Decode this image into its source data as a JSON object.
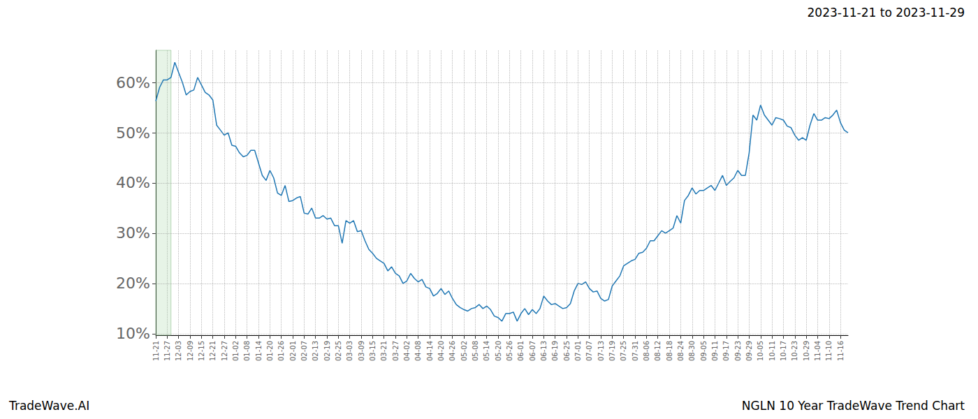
{
  "chart_data": {
    "type": "line",
    "title": "NGLN 10 Year TradeWave Trend Chart",
    "subtitle": "2023-11-21 to 2023-11-29",
    "watermark": "TradeWave.AI",
    "highlight": [
      "11-21",
      "11-29"
    ],
    "color": "#1f77b4",
    "grid": true,
    "categories": [
      "11-21",
      null,
      null,
      "11-27",
      null,
      null,
      "12-03",
      null,
      null,
      "12-09",
      null,
      null,
      "12-15",
      null,
      null,
      "12-21",
      null,
      null,
      "12-27",
      null,
      null,
      "01-02",
      null,
      null,
      "01-08",
      null,
      null,
      "01-14",
      null,
      null,
      "01-20",
      null,
      null,
      "01-26",
      null,
      null,
      "02-01",
      null,
      null,
      "02-07",
      null,
      null,
      "02-13",
      null,
      null,
      "02-19",
      null,
      null,
      "02-25",
      null,
      null,
      "03-03",
      null,
      null,
      "03-09",
      null,
      null,
      "03-15",
      null,
      null,
      "03-21",
      null,
      null,
      "03-27",
      null,
      null,
      "04-02",
      null,
      null,
      "04-08",
      null,
      null,
      "04-14",
      null,
      null,
      "04-20",
      null,
      null,
      "04-26",
      null,
      null,
      "05-02",
      null,
      null,
      "05-08",
      null,
      null,
      "05-14",
      null,
      null,
      "05-20",
      null,
      null,
      "05-26",
      null,
      null,
      "06-01",
      null,
      null,
      "06-07",
      null,
      null,
      "06-13",
      null,
      null,
      "06-19",
      null,
      null,
      "06-25",
      null,
      null,
      "07-01",
      null,
      null,
      "07-07",
      null,
      null,
      "07-13",
      null,
      null,
      "07-19",
      null,
      null,
      "07-25",
      null,
      null,
      "07-31",
      null,
      null,
      "08-06",
      null,
      null,
      "08-12",
      null,
      null,
      "08-18",
      null,
      null,
      "08-24",
      null,
      null,
      "08-30",
      null,
      null,
      "09-05",
      null,
      null,
      "09-11",
      null,
      null,
      "09-17",
      null,
      null,
      "09-23",
      null,
      null,
      "09-29",
      null,
      null,
      "10-05",
      null,
      null,
      "10-11",
      null,
      null,
      "10-17",
      null,
      null,
      "10-23",
      null,
      null,
      "10-29",
      null,
      null,
      "11-04",
      null,
      null,
      "11-10",
      null,
      null,
      "11-16",
      null,
      null
    ],
    "values": [
      56.3,
      59,
      60.5,
      60.5,
      61,
      64,
      62,
      60,
      57.5,
      58.2,
      58.5,
      61,
      59.5,
      58,
      57.5,
      56.5,
      51.5,
      50.5,
      49.5,
      50,
      47.5,
      47.3,
      46,
      45.2,
      45.5,
      46.5,
      46.5,
      44,
      41.5,
      40.5,
      42.5,
      41,
      38,
      37.5,
      39.5,
      36.3,
      36.5,
      37,
      37.3,
      34,
      33.8,
      35,
      33,
      33,
      33.5,
      32.8,
      33,
      31.5,
      31.5,
      28,
      32.5,
      32,
      32.5,
      30.3,
      30.5,
      28.5,
      26.8,
      26,
      25,
      24.5,
      24,
      22.5,
      23.3,
      22,
      21.5,
      20,
      20.5,
      22,
      21,
      20.3,
      20.8,
      19.3,
      19,
      17.5,
      18,
      19,
      17.8,
      18.5,
      17,
      15.8,
      15.2,
      14.8,
      14.5,
      15,
      15.2,
      15.8,
      15,
      15.5,
      14.8,
      13.5,
      13.2,
      12.5,
      14,
      14,
      14.3,
      12.5,
      14,
      15,
      13.8,
      14.8,
      14,
      15,
      17.5,
      16.5,
      15.8,
      16,
      15.5,
      15,
      15.2,
      16,
      18.5,
      20,
      19.8,
      20.3,
      19,
      18.3,
      18.5,
      17,
      16.5,
      16.8,
      19.5,
      20.5,
      21.5,
      23.5,
      24,
      24.5,
      24.8,
      26,
      26.2,
      27,
      28.5,
      28.5,
      29.5,
      30.5,
      30,
      30.5,
      31,
      33.5,
      32,
      36.5,
      37.5,
      39,
      37.8,
      38.5,
      38.5,
      39,
      39.5,
      38.5,
      40,
      41.5,
      39.5,
      40.3,
      41,
      42.5,
      41.5,
      41.5,
      46,
      53.5,
      52.5,
      55.5,
      53.5,
      52.5,
      51.5,
      53,
      52.8,
      52.5,
      51.3,
      51,
      49.5,
      48.5,
      49,
      48.5,
      51.5,
      53.8,
      52.5,
      52.5,
      53,
      52.8,
      53.5,
      54.5,
      52,
      50.5,
      50
    ],
    "ylim": [
      9.7,
      66.4
    ],
    "yticks": [
      {
        "value": 10,
        "label": "10%"
      },
      {
        "value": 20,
        "label": "20%"
      },
      {
        "value": 30,
        "label": "30%"
      },
      {
        "value": 40,
        "label": "40%"
      },
      {
        "value": 50,
        "label": "50%"
      },
      {
        "value": 60,
        "label": "60%"
      }
    ]
  }
}
